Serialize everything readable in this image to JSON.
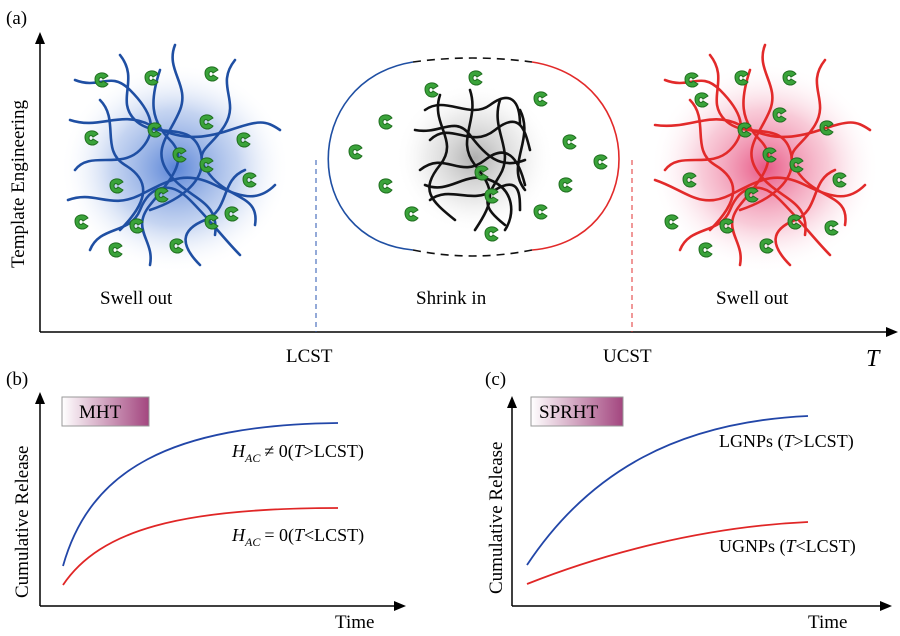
{
  "panel_a": {
    "label": "(a)",
    "y_axis_title": "Template Engineering",
    "x_axis_symbol": "T",
    "x_ticks": [
      "LCST",
      "UCST"
    ],
    "states": [
      "Swell out",
      "Shrink in",
      "Swell out"
    ],
    "colors": {
      "low": "#1f4fa3",
      "mid": "#111111",
      "high": "#e22a2a",
      "molecule": "#3aa33a"
    }
  },
  "panel_b": {
    "label": "(b)",
    "legend": "MHT",
    "y_axis_title": "Cumulative Release",
    "x_axis_title": "Time",
    "curves": [
      {
        "color": "#2246a8",
        "prefix": "H",
        "sub": "AC",
        "relation": "≠ 0(",
        "var": "T",
        "cond": ">LCST)"
      },
      {
        "color": "#e02626",
        "prefix": "H",
        "sub": "AC",
        "relation": "= 0(",
        "var": "T",
        "cond": "<LCST)"
      }
    ]
  },
  "panel_c": {
    "label": "(c)",
    "legend": "SPRHT",
    "y_axis_title": "Cumulative Release",
    "x_axis_title": "Time",
    "curves": [
      {
        "color": "#2246a8",
        "name": "LGNPs (",
        "var": "T",
        "cond": ">LCST)"
      },
      {
        "color": "#e02626",
        "name": "UGNPs (",
        "var": "T",
        "cond": "<LCST)"
      }
    ]
  }
}
